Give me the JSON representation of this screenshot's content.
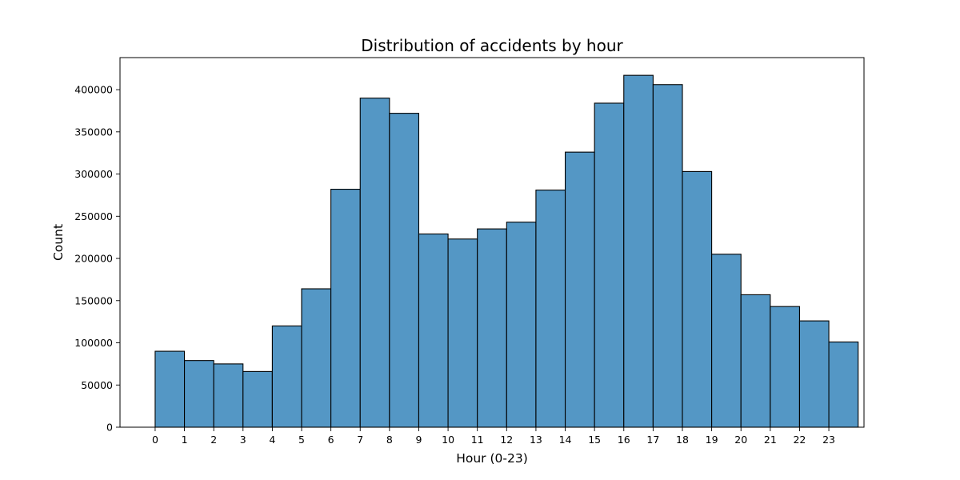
{
  "chart_data": {
    "type": "bar",
    "title": "Distribution of accidents by hour",
    "xlabel": "Hour (0-23)",
    "ylabel": "Count",
    "x_ticks": [
      "0",
      "1",
      "2",
      "3",
      "4",
      "5",
      "6",
      "7",
      "8",
      "9",
      "10",
      "11",
      "12",
      "13",
      "14",
      "15",
      "16",
      "17",
      "18",
      "19",
      "20",
      "21",
      "22",
      "23"
    ],
    "x_range": [
      -1.2,
      24.2
    ],
    "ylim": [
      0,
      438000
    ],
    "y_ticks": [
      0,
      50000,
      100000,
      150000,
      200000,
      250000,
      300000,
      350000,
      400000
    ],
    "bins": [
      {
        "start": 0.0,
        "end": 1.0,
        "value": 90000
      },
      {
        "start": 1.0,
        "end": 2.0,
        "value": 79000
      },
      {
        "start": 2.0,
        "end": 3.0,
        "value": 75000
      },
      {
        "start": 3.0,
        "end": 4.0,
        "value": 66000
      },
      {
        "start": 4.0,
        "end": 5.0,
        "value": 120000
      },
      {
        "start": 5.0,
        "end": 6.0,
        "value": 164000
      },
      {
        "start": 6.0,
        "end": 7.0,
        "value": 282000
      },
      {
        "start": 7.0,
        "end": 8.0,
        "value": 390000
      },
      {
        "start": 8.0,
        "end": 9.0,
        "value": 372000
      },
      {
        "start": 9.0,
        "end": 10.0,
        "value": 229000
      },
      {
        "start": 10.0,
        "end": 11.0,
        "value": 223000
      },
      {
        "start": 11.0,
        "end": 12.0,
        "value": 235000
      },
      {
        "start": 12.0,
        "end": 13.0,
        "value": 243000
      },
      {
        "start": 13.0,
        "end": 14.0,
        "value": 281000
      },
      {
        "start": 14.0,
        "end": 15.0,
        "value": 326000
      },
      {
        "start": 15.0,
        "end": 16.0,
        "value": 384000
      },
      {
        "start": 16.0,
        "end": 17.0,
        "value": 417000
      },
      {
        "start": 17.0,
        "end": 18.0,
        "value": 406000
      },
      {
        "start": 18.0,
        "end": 19.0,
        "value": 303000
      },
      {
        "start": 19.0,
        "end": 20.0,
        "value": 205000
      },
      {
        "start": 20.0,
        "end": 21.0,
        "value": 157000
      },
      {
        "start": 21.0,
        "end": 22.0,
        "value": 143000
      },
      {
        "start": 22.0,
        "end": 23.0,
        "value": 126000
      },
      {
        "start": 23.0,
        "end": 24.0,
        "value": 101000
      }
    ],
    "bar_color": "#5497c5",
    "edge_color": "#000000",
    "grid": false,
    "legend": "none"
  }
}
